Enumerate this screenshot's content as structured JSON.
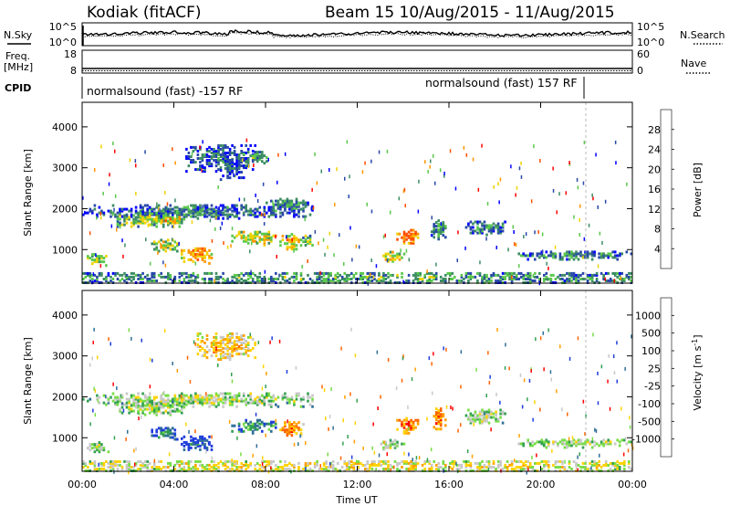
{
  "header": {
    "station": "Kodiak (fitACF)",
    "beam_info": "Beam 15  10/Aug/2015 - 11/Aug/2015"
  },
  "noise_panel": {
    "left_label": "N.Sky",
    "left_ticks": [
      "10^5",
      "10^0"
    ],
    "right_label": "N.Search",
    "right_ticks": [
      "10^5",
      "10^0"
    ]
  },
  "freq_panel": {
    "left_label_top": "Freq.",
    "left_label_bottom": "[MHz]",
    "left_ticks": [
      "18",
      "8"
    ],
    "right_label": "Nave",
    "right_ticks": [
      "60",
      "0"
    ]
  },
  "cpid": {
    "label": "CPID",
    "segments": [
      {
        "text": "normalsound (fast) -157 RF",
        "start_hour": 0,
        "end_hour": 21.9
      },
      {
        "text": "normalsound (fast) 157 RF",
        "start_hour": 21.9,
        "end_hour": 24
      }
    ]
  },
  "chart_data": [
    {
      "type": "heatmap",
      "title": "",
      "xlabel": "",
      "ylabel": "Slant Range [km]",
      "xlim": [
        0,
        24
      ],
      "ylim": [
        180,
        4600
      ],
      "yticks": [
        "1000",
        "2000",
        "3000",
        "4000"
      ],
      "colorbar": {
        "label": "Power [dB]",
        "ticks": [
          "4",
          "8",
          "12",
          "16",
          "20",
          "24",
          "28"
        ],
        "colors": [
          "#0000ff",
          "#2848a8",
          "#3c8c64",
          "#5ac84b",
          "#f0d200",
          "#ff9600",
          "#ff5000",
          "#ff0000"
        ]
      },
      "blobs": [
        {
          "t0": 0.1,
          "t1": 1.1,
          "r0": 600,
          "r1": 900,
          "val": 0.55
        },
        {
          "t0": 0.0,
          "t1": 10.0,
          "r0": 1750,
          "r1": 2100,
          "val": 0.3
        },
        {
          "t0": 1.5,
          "t1": 4.5,
          "r0": 1550,
          "r1": 1900,
          "val": 0.5
        },
        {
          "t0": 3.5,
          "t1": 4.3,
          "r0": 1600,
          "r1": 1800,
          "val": 0.7
        },
        {
          "t0": 3.0,
          "t1": 4.2,
          "r0": 950,
          "r1": 1250,
          "val": 0.55
        },
        {
          "t0": 4.3,
          "t1": 5.6,
          "r0": 650,
          "r1": 1050,
          "val": 0.75
        },
        {
          "t0": 6.0,
          "t1": 7.0,
          "r0": 2700,
          "r1": 3200,
          "val": 0.25
        },
        {
          "t0": 4.5,
          "t1": 7.5,
          "r0": 2900,
          "r1": 3550,
          "val": 0.25
        },
        {
          "t0": 7.0,
          "t1": 8.0,
          "r0": 3100,
          "r1": 3400,
          "val": 0.4
        },
        {
          "t0": 6.5,
          "t1": 8.4,
          "r0": 1100,
          "r1": 1450,
          "val": 0.6
        },
        {
          "t0": 8.6,
          "t1": 9.6,
          "r0": 1000,
          "r1": 1400,
          "val": 0.65
        },
        {
          "t0": 9.6,
          "t1": 10.0,
          "r0": 1050,
          "r1": 1400,
          "val": 0.5
        },
        {
          "t0": 8.0,
          "t1": 10.0,
          "r0": 1950,
          "r1": 2250,
          "val": 0.35
        },
        {
          "t0": 13.0,
          "t1": 14.0,
          "r0": 700,
          "r1": 950,
          "val": 0.6
        },
        {
          "t0": 13.7,
          "t1": 14.6,
          "r0": 1100,
          "r1": 1500,
          "val": 0.8
        },
        {
          "t0": 15.2,
          "t1": 15.8,
          "r0": 1200,
          "r1": 1700,
          "val": 0.4
        },
        {
          "t0": 16.7,
          "t1": 18.5,
          "r0": 1350,
          "r1": 1700,
          "val": 0.35
        },
        {
          "t0": 19.0,
          "t1": 24.0,
          "r0": 750,
          "r1": 950,
          "val": 0.35
        },
        {
          "t0": 0.0,
          "t1": 24.0,
          "r0": 180,
          "r1": 420,
          "val": 0.4
        }
      ]
    },
    {
      "type": "heatmap",
      "title": "",
      "xlabel": "Time UT",
      "ylabel": "Slant Range [km]",
      "xlim": [
        0,
        24
      ],
      "ylim": [
        180,
        4600
      ],
      "xticks": [
        "00:00",
        "04:00",
        "08:00",
        "12:00",
        "16:00",
        "20:00",
        "00:00"
      ],
      "yticks": [
        "1000",
        "2000",
        "3000",
        "4000"
      ],
      "colorbar": {
        "label": "Velocity [m s^-1]",
        "ticks": [
          "1000",
          "500",
          "100",
          "25",
          "-25",
          "-100",
          "-500",
          "-1000"
        ],
        "colors": [
          "#1e3cdc",
          "#2d6e96",
          "#32a050",
          "#78dc46",
          "#c8c8c8",
          "#ffd200",
          "#ffa000",
          "#ff6400",
          "#ff0000"
        ]
      },
      "blobs": [
        {
          "t0": 0.1,
          "t1": 1.1,
          "r0": 600,
          "r1": 900,
          "val": 0.5
        },
        {
          "t0": 0.0,
          "t1": 10.0,
          "r0": 1750,
          "r1": 2100,
          "val": 0.5
        },
        {
          "t0": 1.5,
          "t1": 4.5,
          "r0": 1550,
          "r1": 1900,
          "val": 0.5
        },
        {
          "t0": 3.0,
          "t1": 4.2,
          "r0": 950,
          "r1": 1250,
          "val": 0.2
        },
        {
          "t0": 4.3,
          "t1": 5.6,
          "r0": 650,
          "r1": 1050,
          "val": 0.15
        },
        {
          "t0": 5.0,
          "t1": 7.5,
          "r0": 2900,
          "r1": 3550,
          "val": 0.7
        },
        {
          "t0": 6.5,
          "t1": 8.4,
          "r0": 1100,
          "r1": 1450,
          "val": 0.3
        },
        {
          "t0": 8.6,
          "t1": 9.6,
          "r0": 1000,
          "r1": 1400,
          "val": 0.8
        },
        {
          "t0": 13.0,
          "t1": 14.0,
          "r0": 700,
          "r1": 950,
          "val": 0.5
        },
        {
          "t0": 13.7,
          "t1": 14.6,
          "r0": 1100,
          "r1": 1500,
          "val": 0.85
        },
        {
          "t0": 15.2,
          "t1": 15.8,
          "r0": 1200,
          "r1": 1700,
          "val": 0.8
        },
        {
          "t0": 16.7,
          "t1": 18.5,
          "r0": 1350,
          "r1": 1700,
          "val": 0.5
        },
        {
          "t0": 19.0,
          "t1": 24.0,
          "r0": 750,
          "r1": 950,
          "val": 0.5
        },
        {
          "t0": 0.0,
          "t1": 24.0,
          "r0": 180,
          "r1": 420,
          "val": 0.62
        }
      ]
    }
  ]
}
